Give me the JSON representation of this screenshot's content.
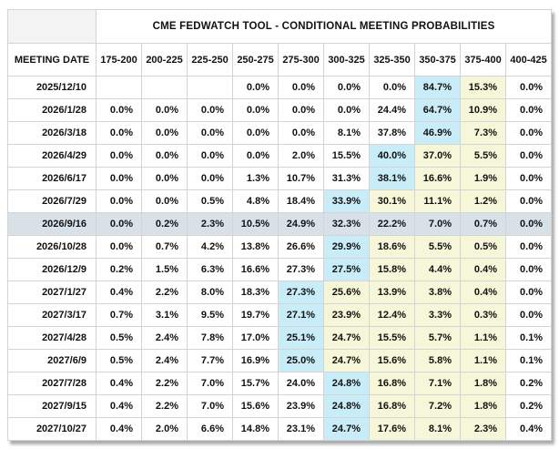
{
  "title": "CME FEDWATCH TOOL - CONDITIONAL MEETING PROBABILITIES",
  "columns": [
    "MEETING DATE",
    "175-200",
    "200-225",
    "225-250",
    "250-275",
    "275-300",
    "300-325",
    "325-350",
    "350-375",
    "375-400",
    "400-425"
  ],
  "colors": {
    "max_highlight": "#c9edf8",
    "tail_highlight": "#f6f6d8",
    "selected_row": "#d9e1e8",
    "border": "#d4d4d4",
    "corner_bg": "#f3f3f3"
  },
  "rows": [
    {
      "date": "2025/12/10",
      "selected": false,
      "values": [
        "",
        "",
        "",
        "0.0%",
        "0.0%",
        "0.0%",
        "0.0%",
        "84.7%",
        "15.3%",
        "0.0%"
      ],
      "highlights": [
        "none",
        "none",
        "none",
        "none",
        "none",
        "none",
        "none",
        "max",
        "tail",
        "none"
      ]
    },
    {
      "date": "2026/1/28",
      "selected": false,
      "values": [
        "0.0%",
        "0.0%",
        "0.0%",
        "0.0%",
        "0.0%",
        "0.0%",
        "24.4%",
        "64.7%",
        "10.9%",
        "0.0%"
      ],
      "highlights": [
        "none",
        "none",
        "none",
        "none",
        "none",
        "none",
        "none",
        "max",
        "tail",
        "none"
      ]
    },
    {
      "date": "2026/3/18",
      "selected": false,
      "values": [
        "0.0%",
        "0.0%",
        "0.0%",
        "0.0%",
        "0.0%",
        "8.1%",
        "37.8%",
        "46.9%",
        "7.3%",
        "0.0%"
      ],
      "highlights": [
        "none",
        "none",
        "none",
        "none",
        "none",
        "none",
        "none",
        "max",
        "tail",
        "none"
      ]
    },
    {
      "date": "2026/4/29",
      "selected": false,
      "values": [
        "0.0%",
        "0.0%",
        "0.0%",
        "0.0%",
        "2.0%",
        "15.5%",
        "40.0%",
        "37.0%",
        "5.5%",
        "0.0%"
      ],
      "highlights": [
        "none",
        "none",
        "none",
        "none",
        "none",
        "none",
        "max",
        "tail",
        "tail",
        "none"
      ]
    },
    {
      "date": "2026/6/17",
      "selected": false,
      "values": [
        "0.0%",
        "0.0%",
        "0.0%",
        "1.3%",
        "10.7%",
        "31.3%",
        "38.1%",
        "16.6%",
        "1.9%",
        "0.0%"
      ],
      "highlights": [
        "none",
        "none",
        "none",
        "none",
        "none",
        "none",
        "max",
        "tail",
        "tail",
        "none"
      ]
    },
    {
      "date": "2026/7/29",
      "selected": false,
      "values": [
        "0.0%",
        "0.0%",
        "0.5%",
        "4.8%",
        "18.4%",
        "33.9%",
        "30.1%",
        "11.1%",
        "1.2%",
        "0.0%"
      ],
      "highlights": [
        "none",
        "none",
        "none",
        "none",
        "none",
        "max",
        "tail",
        "tail",
        "tail",
        "none"
      ]
    },
    {
      "date": "2026/9/16",
      "selected": true,
      "values": [
        "0.0%",
        "0.2%",
        "2.3%",
        "10.5%",
        "24.9%",
        "32.3%",
        "22.2%",
        "7.0%",
        "0.7%",
        "0.0%"
      ],
      "highlights": [
        "none",
        "none",
        "none",
        "none",
        "none",
        "none",
        "none",
        "none",
        "none",
        "none"
      ]
    },
    {
      "date": "2026/10/28",
      "selected": false,
      "values": [
        "0.0%",
        "0.7%",
        "4.2%",
        "13.8%",
        "26.6%",
        "29.9%",
        "18.6%",
        "5.5%",
        "0.5%",
        "0.0%"
      ],
      "highlights": [
        "none",
        "none",
        "none",
        "none",
        "none",
        "max",
        "tail",
        "tail",
        "tail",
        "none"
      ]
    },
    {
      "date": "2026/12/9",
      "selected": false,
      "values": [
        "0.2%",
        "1.5%",
        "6.3%",
        "16.6%",
        "27.3%",
        "27.5%",
        "15.8%",
        "4.4%",
        "0.4%",
        "0.0%"
      ],
      "highlights": [
        "none",
        "none",
        "none",
        "none",
        "none",
        "max",
        "tail",
        "tail",
        "tail",
        "none"
      ]
    },
    {
      "date": "2027/1/27",
      "selected": false,
      "values": [
        "0.4%",
        "2.2%",
        "8.0%",
        "18.3%",
        "27.3%",
        "25.6%",
        "13.9%",
        "3.8%",
        "0.4%",
        "0.0%"
      ],
      "highlights": [
        "none",
        "none",
        "none",
        "none",
        "max",
        "tail",
        "tail",
        "tail",
        "tail",
        "none"
      ]
    },
    {
      "date": "2027/3/17",
      "selected": false,
      "values": [
        "0.7%",
        "3.1%",
        "9.5%",
        "19.7%",
        "27.1%",
        "23.9%",
        "12.4%",
        "3.3%",
        "0.3%",
        "0.0%"
      ],
      "highlights": [
        "none",
        "none",
        "none",
        "none",
        "max",
        "tail",
        "tail",
        "tail",
        "tail",
        "none"
      ]
    },
    {
      "date": "2027/4/28",
      "selected": false,
      "values": [
        "0.5%",
        "2.4%",
        "7.8%",
        "17.0%",
        "25.1%",
        "24.7%",
        "15.5%",
        "5.7%",
        "1.1%",
        "0.1%"
      ],
      "highlights": [
        "none",
        "none",
        "none",
        "none",
        "max",
        "tail",
        "tail",
        "tail",
        "tail",
        "none"
      ]
    },
    {
      "date": "2027/6/9",
      "selected": false,
      "values": [
        "0.5%",
        "2.4%",
        "7.7%",
        "16.9%",
        "25.0%",
        "24.7%",
        "15.6%",
        "5.8%",
        "1.1%",
        "0.1%"
      ],
      "highlights": [
        "none",
        "none",
        "none",
        "none",
        "max",
        "tail",
        "tail",
        "tail",
        "tail",
        "none"
      ]
    },
    {
      "date": "2027/7/28",
      "selected": false,
      "values": [
        "0.4%",
        "2.2%",
        "7.0%",
        "15.7%",
        "24.0%",
        "24.8%",
        "16.8%",
        "7.1%",
        "1.8%",
        "0.2%"
      ],
      "highlights": [
        "none",
        "none",
        "none",
        "none",
        "none",
        "max",
        "tail",
        "tail",
        "tail",
        "none"
      ]
    },
    {
      "date": "2027/9/15",
      "selected": false,
      "values": [
        "0.4%",
        "2.2%",
        "7.0%",
        "15.6%",
        "23.9%",
        "24.8%",
        "16.8%",
        "7.2%",
        "1.8%",
        "0.2%"
      ],
      "highlights": [
        "none",
        "none",
        "none",
        "none",
        "none",
        "max",
        "tail",
        "tail",
        "tail",
        "none"
      ]
    },
    {
      "date": "2027/10/27",
      "selected": false,
      "values": [
        "0.4%",
        "2.0%",
        "6.6%",
        "14.8%",
        "23.1%",
        "24.7%",
        "17.6%",
        "8.1%",
        "2.3%",
        "0.4%"
      ],
      "highlights": [
        "none",
        "none",
        "none",
        "none",
        "none",
        "max",
        "tail",
        "tail",
        "tail",
        "none"
      ]
    }
  ]
}
